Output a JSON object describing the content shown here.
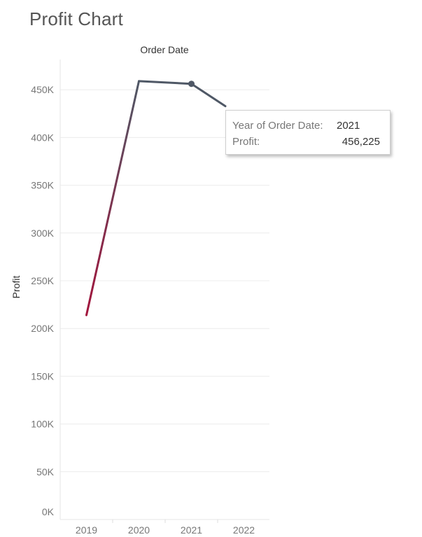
{
  "page": {
    "title": "Profit Chart"
  },
  "chart_data": {
    "type": "line",
    "title": "Profit Chart",
    "xlabel": "Order Date",
    "ylabel": "Profit",
    "categories": [
      "2019",
      "2020",
      "2021",
      "2022"
    ],
    "series": [
      {
        "values": [
          214000,
          459000,
          456225,
          420000
        ]
      }
    ],
    "ylim": [
      0,
      480000
    ],
    "yticks": [
      0,
      50000,
      100000,
      150000,
      200000,
      250000,
      300000,
      350000,
      400000,
      450000
    ],
    "ytick_labels": [
      "0K",
      "50K",
      "100K",
      "150K",
      "200K",
      "250K",
      "300K",
      "350K",
      "400K",
      "450K"
    ],
    "grid": true,
    "highlighted_point": "2021",
    "colors": {
      "line": "#4f5866",
      "line_start": "#a3153d",
      "grid": "#ececec"
    }
  },
  "tooltip": {
    "rows": [
      {
        "key": "Year of Order Date:",
        "value": "2021"
      },
      {
        "key": "Profit:",
        "value": "456,225"
      }
    ]
  }
}
